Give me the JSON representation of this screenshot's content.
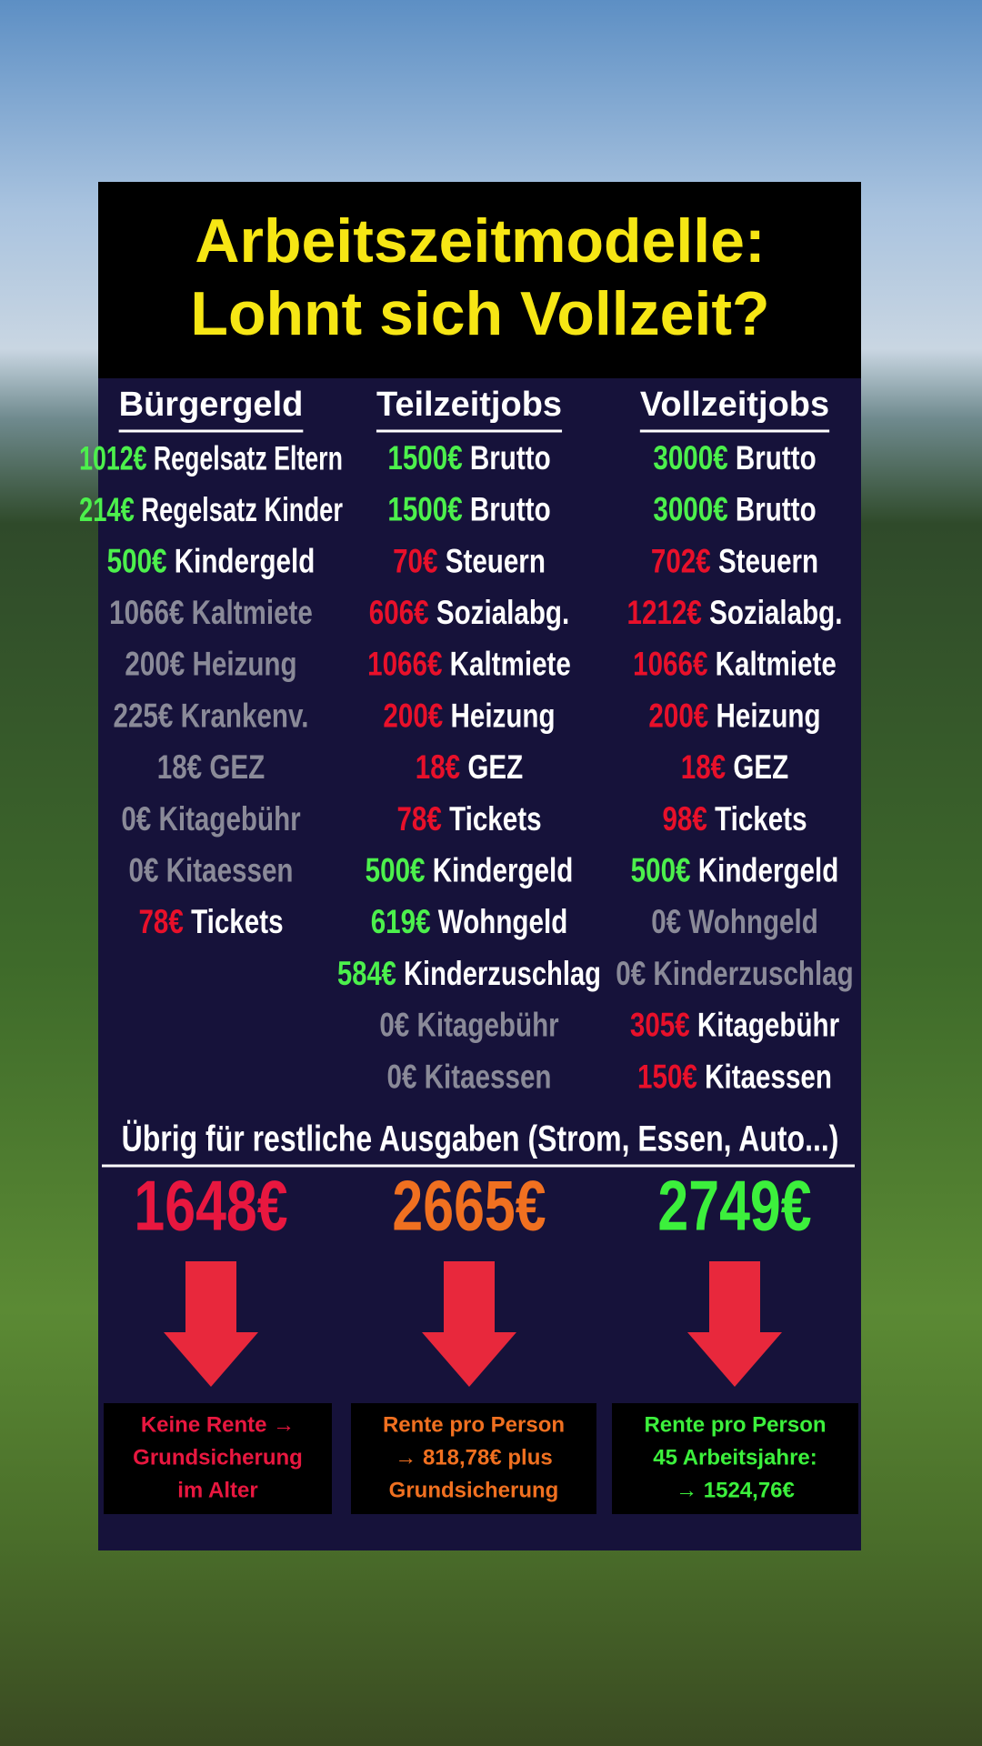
{
  "title": {
    "lines": [
      "Arbeitszeitmodelle:",
      "Lohnt sich Vollzeit?"
    ],
    "color": "#f6e614"
  },
  "columns": [
    {
      "header": "Bürgergeld",
      "rows": [
        {
          "amount": "1012€",
          "label": "Regelsatz Eltern",
          "amount_color": "#4cf04c",
          "label_color": "#ffffff"
        },
        {
          "amount": "214€",
          "label": "Regelsatz Kinder",
          "amount_color": "#4cf04c",
          "label_color": "#ffffff"
        },
        {
          "amount": "500€",
          "label": "Kindergeld",
          "amount_color": "#4cf04c",
          "label_color": "#ffffff"
        },
        {
          "amount": "1066€",
          "label": "Kaltmiete",
          "amount_color": "#8a8a98",
          "label_color": "#8a8a98"
        },
        {
          "amount": "200€",
          "label": "Heizung",
          "amount_color": "#8a8a98",
          "label_color": "#8a8a98"
        },
        {
          "amount": "225€",
          "label": "Krankenv.",
          "amount_color": "#8a8a98",
          "label_color": "#8a8a98"
        },
        {
          "amount": "18€",
          "label": "GEZ",
          "amount_color": "#8a8a98",
          "label_color": "#8a8a98"
        },
        {
          "amount": "0€",
          "label": "Kitagebühr",
          "amount_color": "#8a8a98",
          "label_color": "#8a8a98"
        },
        {
          "amount": "0€",
          "label": "Kitaessen",
          "amount_color": "#8a8a98",
          "label_color": "#8a8a98"
        },
        {
          "amount": "78€",
          "label": "Tickets",
          "amount_color": "#e8102a",
          "label_color": "#ffffff"
        }
      ],
      "total": "1648€",
      "total_color": "#e8173f",
      "pension": {
        "lines": [
          "Keine Rente →",
          "Grundsicherung",
          "im Alter"
        ],
        "color": "#e8173f"
      }
    },
    {
      "header": "Teilzeitjobs",
      "rows": [
        {
          "amount": "1500€",
          "label": "Brutto",
          "amount_color": "#4cf04c",
          "label_color": "#ffffff"
        },
        {
          "amount": "1500€",
          "label": "Brutto",
          "amount_color": "#4cf04c",
          "label_color": "#ffffff"
        },
        {
          "amount": "70€",
          "label": "Steuern",
          "amount_color": "#e8102a",
          "label_color": "#ffffff"
        },
        {
          "amount": "606€",
          "label": "Sozialabg.",
          "amount_color": "#e8102a",
          "label_color": "#ffffff"
        },
        {
          "amount": "1066€",
          "label": "Kaltmiete",
          "amount_color": "#e8102a",
          "label_color": "#ffffff"
        },
        {
          "amount": "200€",
          "label": "Heizung",
          "amount_color": "#e8102a",
          "label_color": "#ffffff"
        },
        {
          "amount": "18€",
          "label": "GEZ",
          "amount_color": "#e8102a",
          "label_color": "#ffffff"
        },
        {
          "amount": "78€",
          "label": "Tickets",
          "amount_color": "#e8102a",
          "label_color": "#ffffff"
        },
        {
          "amount": "500€",
          "label": "Kindergeld",
          "amount_color": "#4cf04c",
          "label_color": "#ffffff"
        },
        {
          "amount": "619€",
          "label": "Wohngeld",
          "amount_color": "#4cf04c",
          "label_color": "#ffffff"
        },
        {
          "amount": "584€",
          "label": "Kinderzuschlag",
          "amount_color": "#4cf04c",
          "label_color": "#ffffff"
        },
        {
          "amount": "0€",
          "label": "Kitagebühr",
          "amount_color": "#8a8a98",
          "label_color": "#8a8a98"
        },
        {
          "amount": "0€",
          "label": "Kitaessen",
          "amount_color": "#8a8a98",
          "label_color": "#8a8a98"
        }
      ],
      "total": "2665€",
      "total_color": "#f07020",
      "pension": {
        "lines": [
          "Rente pro Person",
          "→ 818,78€ plus",
          "Grundsicherung"
        ],
        "color": "#f07020"
      }
    },
    {
      "header": "Vollzeitjobs",
      "rows": [
        {
          "amount": "3000€",
          "label": "Brutto",
          "amount_color": "#4cf04c",
          "label_color": "#ffffff"
        },
        {
          "amount": "3000€",
          "label": "Brutto",
          "amount_color": "#4cf04c",
          "label_color": "#ffffff"
        },
        {
          "amount": "702€",
          "label": "Steuern",
          "amount_color": "#e8102a",
          "label_color": "#ffffff"
        },
        {
          "amount": "1212€",
          "label": "Sozialabg.",
          "amount_color": "#e8102a",
          "label_color": "#ffffff"
        },
        {
          "amount": "1066€",
          "label": "Kaltmiete",
          "amount_color": "#e8102a",
          "label_color": "#ffffff"
        },
        {
          "amount": "200€",
          "label": "Heizung",
          "amount_color": "#e8102a",
          "label_color": "#ffffff"
        },
        {
          "amount": "18€",
          "label": "GEZ",
          "amount_color": "#e8102a",
          "label_color": "#ffffff"
        },
        {
          "amount": "98€",
          "label": "Tickets",
          "amount_color": "#e8102a",
          "label_color": "#ffffff"
        },
        {
          "amount": "500€",
          "label": "Kindergeld",
          "amount_color": "#4cf04c",
          "label_color": "#ffffff"
        },
        {
          "amount": "0€",
          "label": "Wohngeld",
          "amount_color": "#8a8a98",
          "label_color": "#8a8a98"
        },
        {
          "amount": "0€",
          "label": "Kinderzuschlag",
          "amount_color": "#8a8a98",
          "label_color": "#8a8a98"
        },
        {
          "amount": "305€",
          "label": "Kitagebühr",
          "amount_color": "#e8102a",
          "label_color": "#ffffff"
        },
        {
          "amount": "150€",
          "label": "Kitaessen",
          "amount_color": "#e8102a",
          "label_color": "#ffffff"
        }
      ],
      "total": "2749€",
      "total_color": "#3cf03c",
      "pension": {
        "lines": [
          "Rente pro Person",
          "45 Arbeitsjahre:",
          "→ 1524,76€"
        ],
        "color": "#3cf03c"
      }
    }
  ],
  "summary": "Übrig für restliche Ausgaben (Strom, Essen, Auto...)"
}
